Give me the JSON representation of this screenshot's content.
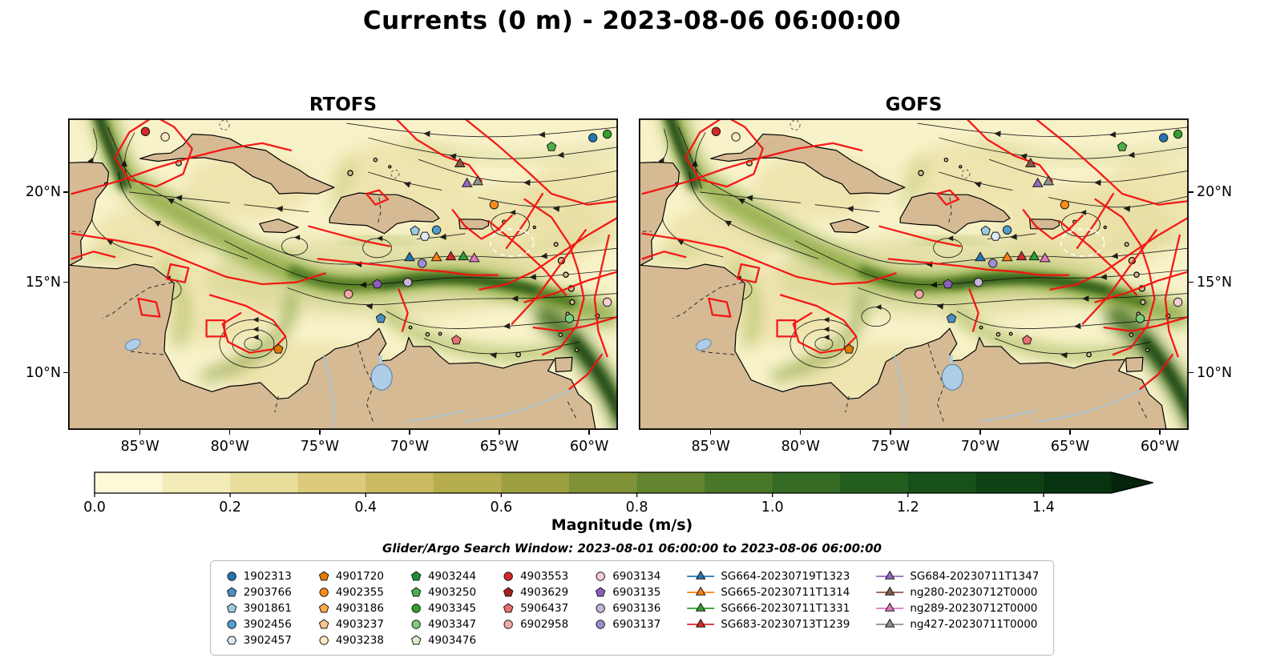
{
  "figure": {
    "title": "Currents (0 m) - 2023-08-06 06:00:00",
    "search_window": "Glider/Argo Search Window: 2023-08-01 06:00:00 to 2023-08-06 06:00:00",
    "colorbar": {
      "label": "Magnitude (m/s)",
      "tick_labels": [
        "0.0",
        "0.2",
        "0.4",
        "0.6",
        "0.8",
        "1.0",
        "1.2",
        "1.4"
      ],
      "segment_colors": [
        "#fdf9d8",
        "#f4ecb8",
        "#e9dd9b",
        "#dcca7d",
        "#cbba62",
        "#b5ad4e",
        "#9ca040",
        "#809237",
        "#648530",
        "#4a7829",
        "#356b24",
        "#245e1e",
        "#175019",
        "#0e4214",
        "#083310"
      ],
      "arrow_color": "#05240b"
    }
  },
  "panels": [
    {
      "title": "RTOFS"
    },
    {
      "title": "GOFS"
    }
  ],
  "axes": {
    "x_tick_labels": [
      "85°W",
      "80°W",
      "75°W",
      "70°W",
      "65°W",
      "60°W"
    ],
    "x_tick_lons": [
      -85,
      -80,
      -75,
      -70,
      -65,
      -60
    ],
    "y_tick_labels": [
      "20°N",
      "15°N",
      "10°N"
    ],
    "y_tick_lats": [
      20,
      15,
      10
    ]
  },
  "legend": {
    "columns": [
      [
        {
          "label": "1902313",
          "marker": "circle",
          "color": "#1f77b4"
        },
        {
          "label": "2903766",
          "marker": "pentagon",
          "color": "#4a90c4"
        },
        {
          "label": "3901861",
          "marker": "pentagon",
          "color": "#9ecae1"
        },
        {
          "label": "3902456",
          "marker": "circle",
          "color": "#4f9fd4"
        },
        {
          "label": "3902457",
          "marker": "hexagon",
          "color": "#dceaf5"
        }
      ],
      [
        {
          "label": "4901720",
          "marker": "pentagon",
          "color": "#e07b00"
        },
        {
          "label": "4902355",
          "marker": "circle",
          "color": "#ff8c1a"
        },
        {
          "label": "4903186",
          "marker": "pentagon",
          "color": "#ffa94d"
        },
        {
          "label": "4903237",
          "marker": "pentagon",
          "color": "#ffc488"
        },
        {
          "label": "4903238",
          "marker": "circle",
          "color": "#ffe8c2"
        }
      ],
      [
        {
          "label": "4903244",
          "marker": "pentagon",
          "color": "#1a8f3c"
        },
        {
          "label": "4903250",
          "marker": "pentagon",
          "color": "#4daf4a"
        },
        {
          "label": "4903345",
          "marker": "circle",
          "color": "#33a02c"
        },
        {
          "label": "4903347",
          "marker": "circle",
          "color": "#7ccd7c"
        },
        {
          "label": "4903476",
          "marker": "pentagon",
          "color": "#d4efcd"
        }
      ],
      [
        {
          "label": "4903553",
          "marker": "circle",
          "color": "#d62728"
        },
        {
          "label": "4903629",
          "marker": "pentagon",
          "color": "#a81e1e"
        },
        {
          "label": "5906437",
          "marker": "pentagon",
          "color": "#e8706f"
        },
        {
          "label": "6902958",
          "marker": "circle",
          "color": "#f3a8ab"
        }
      ],
      [
        {
          "label": "6903134",
          "marker": "circle",
          "color": "#f9cdd4"
        },
        {
          "label": "6903135",
          "marker": "pentagon",
          "color": "#8c5fbf"
        },
        {
          "label": "6903136",
          "marker": "circle",
          "color": "#c9b6dd"
        },
        {
          "label": "6903137",
          "marker": "circle",
          "color": "#a08cd0"
        }
      ],
      [
        {
          "label": "SG664-20230719T1323",
          "marker": "glider",
          "color": "#1f77b4"
        },
        {
          "label": "SG665-20230711T1314",
          "marker": "glider",
          "color": "#ff7f0e"
        },
        {
          "label": "SG666-20230711T1331",
          "marker": "glider",
          "color": "#2ca02c"
        },
        {
          "label": "SG683-20230713T1239",
          "marker": "glider",
          "color": "#d62728"
        }
      ],
      [
        {
          "label": "SG684-20230711T1347",
          "marker": "glider",
          "color": "#9467bd"
        },
        {
          "label": "ng280-20230712T0000",
          "marker": "glider",
          "color": "#8c564b"
        },
        {
          "label": "ng289-20230712T0000",
          "marker": "glider",
          "color": "#e377c2"
        },
        {
          "label": "ng427-20230711T0000",
          "marker": "glider",
          "color": "#8f8f8f"
        }
      ]
    ]
  },
  "chart_data": {
    "type": "heatmap",
    "subtype": "ocean-current-magnitude-maps-with-streamlines",
    "title": "Currents (0 m) - 2023-08-06 06:00:00",
    "panels": [
      "RTOFS",
      "GOFS"
    ],
    "variable": "sea-water current magnitude at 0 m depth",
    "region": "Caribbean Sea",
    "x_axis": {
      "label": "Longitude",
      "tick_labels": [
        "85°W",
        "80°W",
        "75°W",
        "70°W",
        "65°W",
        "60°W"
      ],
      "range_west_deg": [
        89.0,
        58.4
      ]
    },
    "y_axis": {
      "label": "Latitude",
      "tick_labels": [
        "20°N",
        "15°N",
        "10°N"
      ],
      "range_north_deg": [
        6.9,
        24.1
      ]
    },
    "colorbar": {
      "label": "Magnitude (m/s)",
      "tick_values": [
        0.0,
        0.2,
        0.4,
        0.6,
        0.8,
        1.0,
        1.2,
        1.4
      ],
      "range": [
        0.0,
        1.5
      ],
      "extend": "max"
    },
    "overlays": [
      "black streamlines with direction arrows",
      "red drifter trajectories",
      "glider/Argo platform markers"
    ],
    "search_window": {
      "start": "2023-08-01 06:00:00",
      "end": "2023-08-06 06:00:00"
    },
    "markers": [
      {
        "id": "1902313",
        "shape": "circle",
        "color": "#1f77b4",
        "lon": -59.8,
        "lat": 23.0
      },
      {
        "id": "4903345",
        "shape": "circle",
        "color": "#33a02c",
        "lon": -59.0,
        "lat": 23.2
      },
      {
        "id": "4903250",
        "shape": "pentagon",
        "color": "#4daf4a",
        "lon": -62.1,
        "lat": 22.5
      },
      {
        "id": "4903553",
        "shape": "circle",
        "color": "#d62728",
        "lon": -84.7,
        "lat": 23.35
      },
      {
        "id": "4903238",
        "shape": "circle",
        "color": "#ffe8c2",
        "lon": -83.6,
        "lat": 23.05
      },
      {
        "id": "ng280",
        "shape": "triangle",
        "color": "#8c564b",
        "lon": -67.2,
        "lat": 21.55
      },
      {
        "id": "SG684",
        "shape": "triangle",
        "color": "#9467bd",
        "lon": -66.8,
        "lat": 20.45
      },
      {
        "id": "ng427",
        "shape": "triangle",
        "color": "#8f8f8f",
        "lon": -66.2,
        "lat": 20.55
      },
      {
        "id": "4902355",
        "shape": "circle",
        "color": "#ff8c1a",
        "lon": -65.3,
        "lat": 19.3
      },
      {
        "id": "3901861",
        "shape": "pentagon",
        "color": "#9ecae1",
        "lon": -69.7,
        "lat": 17.85
      },
      {
        "id": "3902457",
        "shape": "hexagon",
        "color": "#dceaf5",
        "lon": -69.15,
        "lat": 17.55
      },
      {
        "id": "3902456",
        "shape": "circle",
        "color": "#4f9fd4",
        "lon": -68.5,
        "lat": 17.9
      },
      {
        "id": "SG664",
        "shape": "triangle",
        "color": "#1f77b4",
        "lon": -70.0,
        "lat": 16.35
      },
      {
        "id": "SG665",
        "shape": "triangle",
        "color": "#ff7f0e",
        "lon": -68.5,
        "lat": 16.35
      },
      {
        "id": "SG683",
        "shape": "triangle",
        "color": "#d62728",
        "lon": -67.7,
        "lat": 16.4
      },
      {
        "id": "SG666",
        "shape": "triangle",
        "color": "#2ca02c",
        "lon": -67.0,
        "lat": 16.4
      },
      {
        "id": "ng289",
        "shape": "triangle",
        "color": "#e377c2",
        "lon": -66.4,
        "lat": 16.3
      },
      {
        "id": "6903137",
        "shape": "circle",
        "color": "#a08cd0",
        "lon": -69.3,
        "lat": 16.05
      },
      {
        "id": "6903135",
        "shape": "pentagon",
        "color": "#8c5fbf",
        "lon": -71.8,
        "lat": 14.9
      },
      {
        "id": "6903136",
        "shape": "circle",
        "color": "#c9b6dd",
        "lon": -70.1,
        "lat": 15.0
      },
      {
        "id": "6902958",
        "shape": "circle",
        "color": "#f3a8ab",
        "lon": -73.4,
        "lat": 14.35
      },
      {
        "id": "6903134",
        "shape": "circle",
        "color": "#f9cdd4",
        "lon": -59.0,
        "lat": 13.9
      },
      {
        "id": "2903766",
        "shape": "pentagon",
        "color": "#4a90c4",
        "lon": -71.6,
        "lat": 13.0
      },
      {
        "id": "4903347",
        "shape": "circle",
        "color": "#7ccd7c",
        "lon": -61.1,
        "lat": 13.0
      },
      {
        "id": "5906437",
        "shape": "pentagon",
        "color": "#e8706f",
        "lon": -67.4,
        "lat": 11.8
      },
      {
        "id": "4901720",
        "shape": "pentagon",
        "color": "#e07b00",
        "lon": -77.3,
        "lat": 11.3
      }
    ]
  }
}
